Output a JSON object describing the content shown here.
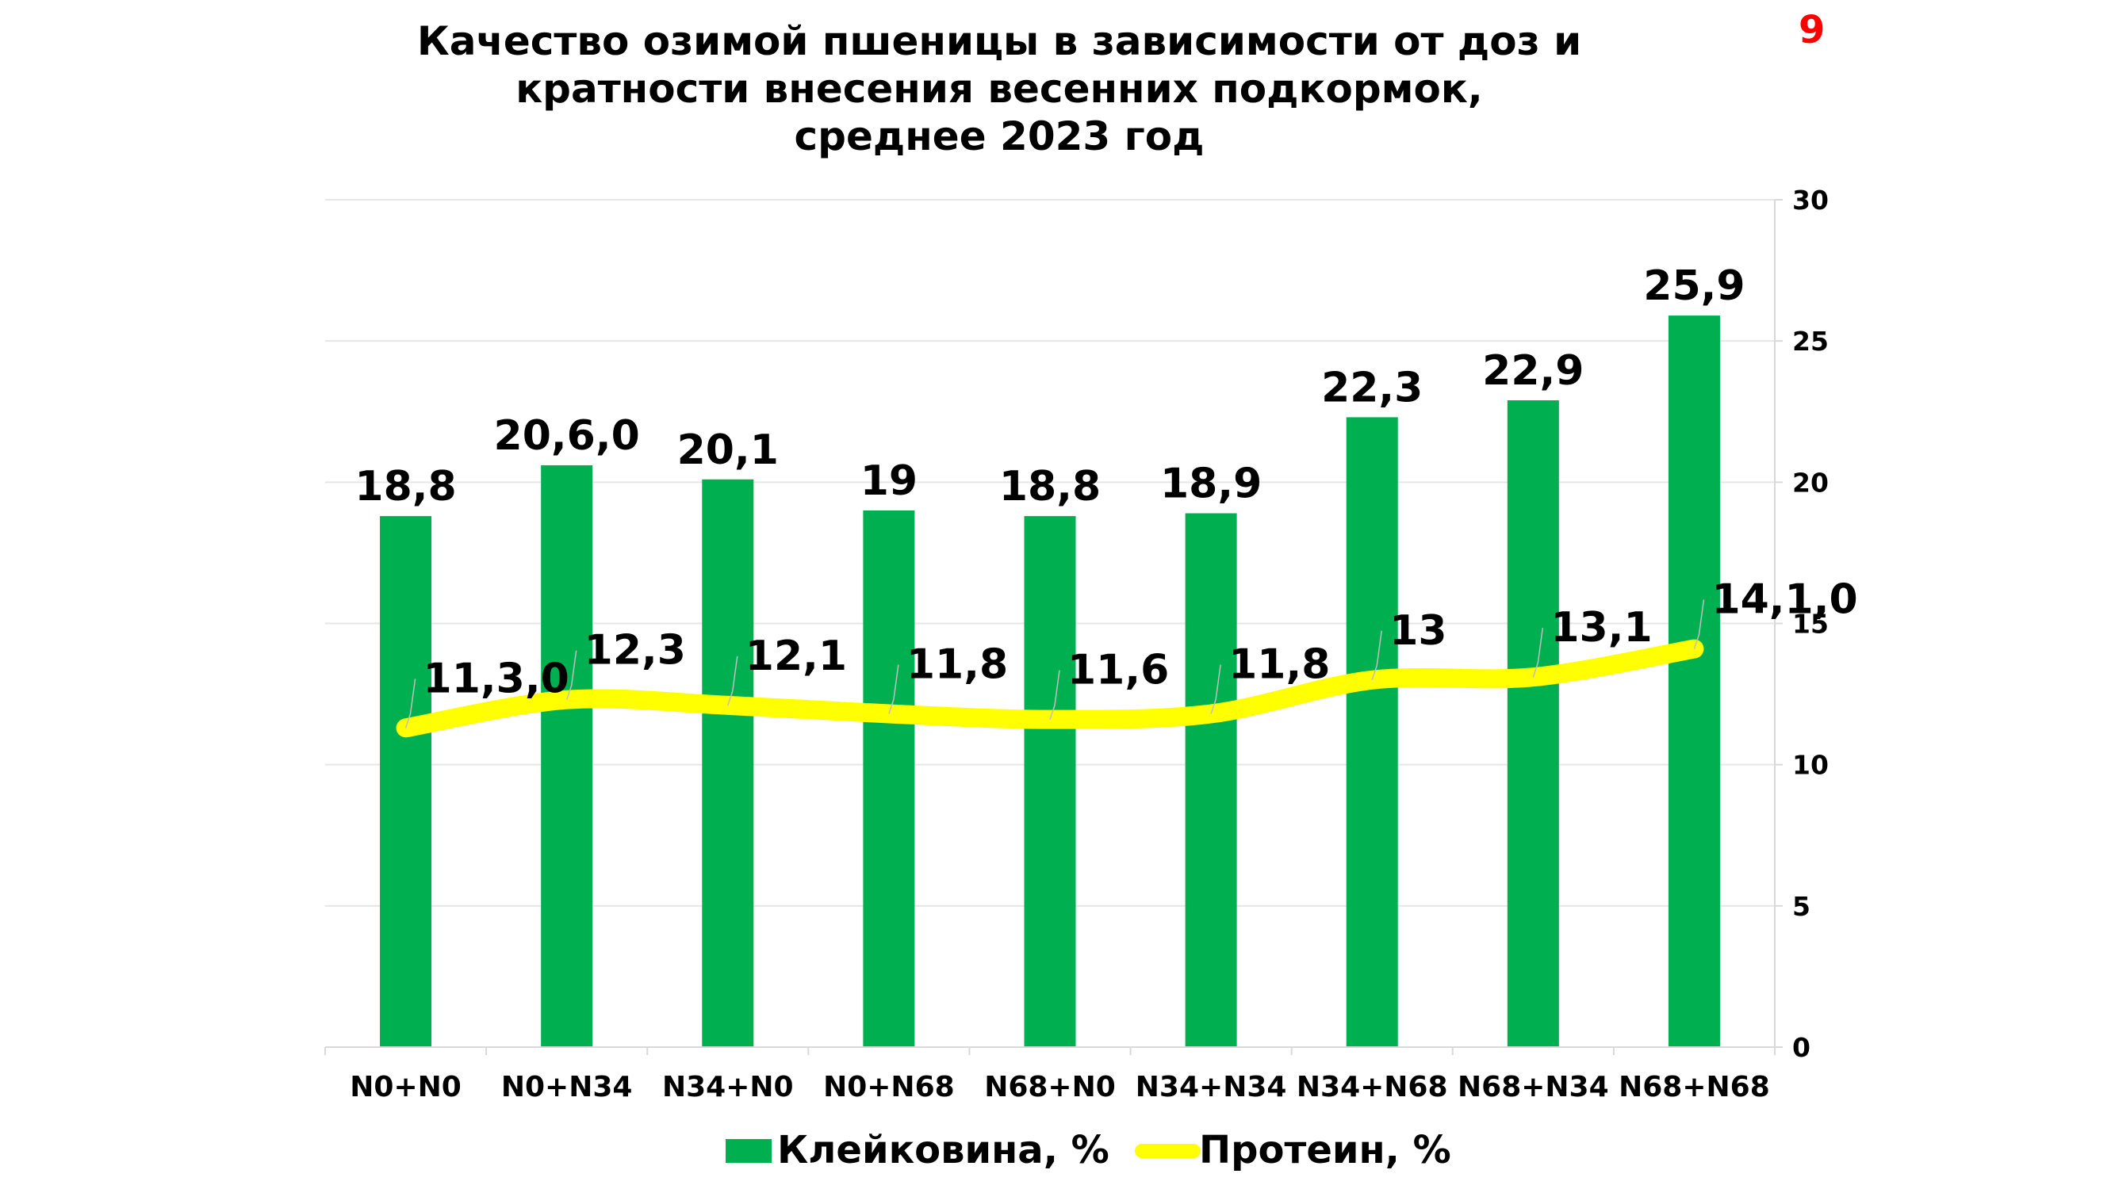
{
  "slide_number": "9",
  "chart_data": {
    "type": "bar",
    "title_lines": [
      "Качество озимой пшеницы в зависимости от доз и",
      "кратности внесения весенних подкормок,",
      "среднее 2023 год"
    ],
    "categories": [
      "N0+N0",
      "N0+N34",
      "N34+N0",
      "N0+N68",
      "N68+N0",
      "N34+N34",
      "N34+N68",
      "N68+N34",
      "N68+N68"
    ],
    "series": [
      {
        "name": "Клейковина, %",
        "type": "bar",
        "color": "#00b050",
        "values": [
          18.8,
          20.6,
          20.1,
          19,
          18.8,
          18.9,
          22.3,
          22.9,
          25.9
        ],
        "labels": [
          "18,8",
          "20,6,0",
          "20,1",
          "19",
          "18,8",
          "18,9",
          "22,3",
          "22,9",
          "25,9"
        ]
      },
      {
        "name": "Протеин, %",
        "type": "line",
        "color": "#ffff00",
        "values": [
          11.3,
          12.3,
          12.1,
          11.8,
          11.6,
          11.8,
          13,
          13.1,
          14.1
        ],
        "labels": [
          "11,3,0",
          "12,3",
          "12,1",
          "11,8",
          "11,6",
          "11,8",
          "13",
          "13,1",
          "14,1,0"
        ]
      }
    ],
    "y_axis": {
      "position": "right",
      "min": 0,
      "max": 30,
      "ticks": [
        "0",
        "5",
        "10",
        "15",
        "20",
        "25",
        "30"
      ]
    },
    "grid": true,
    "legend": "bottom"
  }
}
